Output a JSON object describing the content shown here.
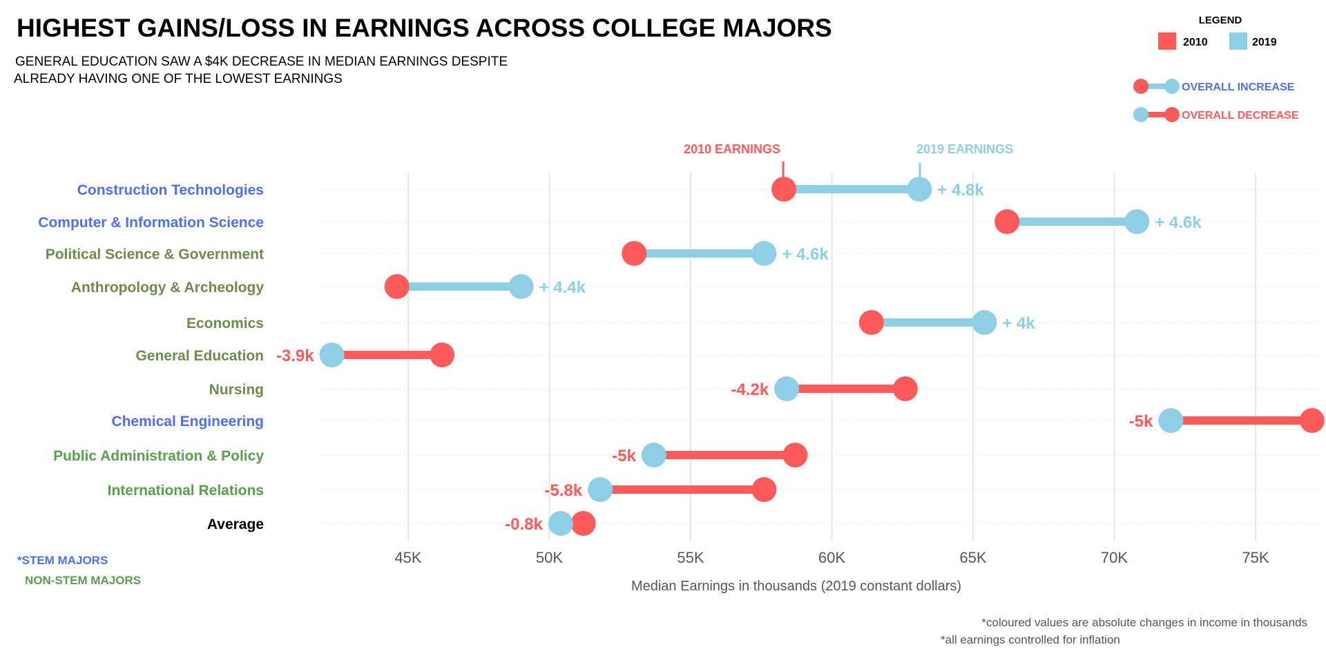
{
  "title": "HIGHEST GAINS/LOSS IN EARNINGS ACROSS COLLEGE MAJORS",
  "subtitle_lines": [
    "GENERAL EDUCATION SAW A $4K DECREASE  IN MEDIAN EARNINGS DESPITE",
    "ALREADY HAVING ONE OF THE LOWEST EARNINGS"
  ],
  "legend": {
    "heading": "LEGEND",
    "items": [
      {
        "label": "2010",
        "color": "#FF5A5A"
      },
      {
        "label": "2019",
        "color": "#8ECFE5"
      }
    ],
    "increase_label": "OVERALL INCREASE",
    "decrease_label": "OVERALL DECREASE"
  },
  "annotations": {
    "earnings_2010": "2010 EARNINGS",
    "earnings_2019": "2019 EARNINGS"
  },
  "category_key": {
    "stem": "*STEM MAJORS",
    "non_stem": "NON-STEM MAJORS"
  },
  "footnotes": [
    "*coloured values are absolute changes in income in thousands",
    "*all earnings controlled for inflation"
  ],
  "colors": {
    "y2010": "#FF5A5A",
    "y2019": "#8ECFE5",
    "stem": "#4F6EF7",
    "non_stem_olive": "#6E8B4A",
    "non_stem_green": "#58A04B",
    "average": "#000000"
  },
  "chart_data": {
    "type": "dumbbell",
    "xlabel": "Median Earnings in thousands (2019 constant dollars)",
    "x_ticks": [
      45,
      50,
      55,
      60,
      65,
      70,
      75
    ],
    "x_tick_labels": [
      "45K",
      "50K",
      "55K",
      "60K",
      "65K",
      "70K",
      "75K"
    ],
    "xlim": [
      42,
      77
    ],
    "grid": true,
    "rows": [
      {
        "major": "Construction Technologies",
        "group": "stem",
        "y2010": 58.3,
        "y2019": 63.1,
        "change_label": "+ 4.8k"
      },
      {
        "major": "Computer & Information Science",
        "group": "stem",
        "y2010": 66.2,
        "y2019": 70.8,
        "change_label": "+ 4.6k"
      },
      {
        "major": "Political Science & Government",
        "group": "non_stem_olive",
        "y2010": 53.0,
        "y2019": 57.6,
        "change_label": "+ 4.6k"
      },
      {
        "major": "Anthropology & Archeology",
        "group": "non_stem_olive",
        "y2010": 44.6,
        "y2019": 49.0,
        "change_label": "+ 4.4k"
      },
      {
        "major": "Economics",
        "group": "non_stem_olive",
        "y2010": 61.4,
        "y2019": 65.4,
        "change_label": "+ 4k"
      },
      {
        "major": "General Education",
        "group": "non_stem_olive",
        "y2010": 46.2,
        "y2019": 42.3,
        "change_label": "-3.9k"
      },
      {
        "major": "Nursing",
        "group": "non_stem_olive",
        "y2010": 62.6,
        "y2019": 58.4,
        "change_label": "-4.2k"
      },
      {
        "major": "Chemical Engineering",
        "group": "stem",
        "y2010": 77.0,
        "y2019": 72.0,
        "change_label": "-5k"
      },
      {
        "major": "Public Administration & Policy",
        "group": "non_stem_green",
        "y2010": 58.7,
        "y2019": 53.7,
        "change_label": "-5k"
      },
      {
        "major": "International Relations",
        "group": "non_stem_green",
        "y2010": 57.6,
        "y2019": 51.8,
        "change_label": "-5.8k"
      },
      {
        "major": "Average",
        "group": "average",
        "y2010": 51.2,
        "y2019": 50.4,
        "change_label": "-0.8k"
      }
    ]
  }
}
